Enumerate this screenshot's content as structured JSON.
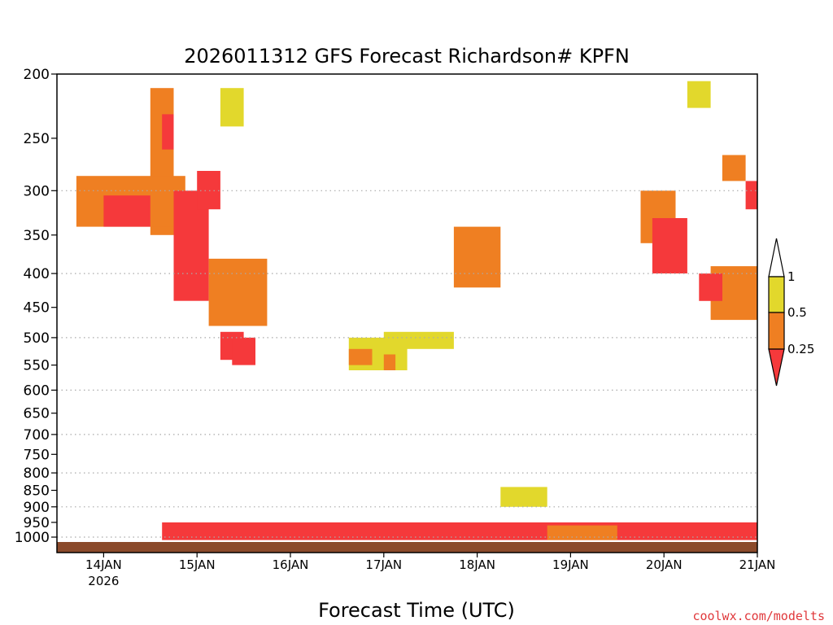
{
  "colors": {
    "lt_025": "#f5393b",
    "r_025_05": "#ef7f22",
    "r_05_1": "#e2d82c",
    "ground": "#8b4a2b",
    "grid": "#aaaaaa",
    "credit": "#e0383b"
  },
  "credit": "coolwx.com/modelts",
  "chart_data": {
    "type": "heatmap",
    "title": "2026011312 GFS Forecast Richardson# KPFN",
    "xlabel": "Forecast Time (UTC)",
    "ylabel": "",
    "y_scale": "log-pressure",
    "ylim": [
      1030,
      200
    ],
    "xlim": [
      "2026-01-13T12",
      "2026-01-21T00"
    ],
    "grid": "horizontal dotted",
    "legend_position": "right",
    "y_ticks": [
      200,
      250,
      300,
      350,
      400,
      450,
      500,
      550,
      600,
      650,
      700,
      750,
      800,
      850,
      900,
      950,
      1000
    ],
    "y_grid": [
      300,
      400,
      500,
      600,
      700,
      800,
      900,
      1000
    ],
    "x_ticks": [
      {
        "t": "2026-01-14T00",
        "label": "14JAN",
        "sub": "2026"
      },
      {
        "t": "2026-01-15T00",
        "label": "15JAN",
        "sub": ""
      },
      {
        "t": "2026-01-16T00",
        "label": "16JAN",
        "sub": ""
      },
      {
        "t": "2026-01-17T00",
        "label": "17JAN",
        "sub": ""
      },
      {
        "t": "2026-01-18T00",
        "label": "18JAN",
        "sub": ""
      },
      {
        "t": "2026-01-19T00",
        "label": "19JAN",
        "sub": ""
      },
      {
        "t": "2026-01-20T00",
        "label": "20JAN",
        "sub": ""
      },
      {
        "t": "2026-01-21T00",
        "label": "21JAN",
        "sub": ""
      }
    ],
    "colorbar": {
      "labels": [
        "1",
        "0.5",
        "0.25"
      ],
      "bins": [
        {
          "range": "> 1",
          "color": "#ffffff"
        },
        {
          "range": "0.5 - 1",
          "color": "#e2d82c"
        },
        {
          "range": "0.25 - 0.5",
          "color": "#ef7f22"
        },
        {
          "range": "< 0.25",
          "color": "#f5393b"
        }
      ]
    },
    "regions": [
      {
        "t0": "2026-01-14T12",
        "t1": "2026-01-14T18",
        "p_top": 210,
        "p_bot": 350,
        "cat": "0.25-0.5"
      },
      {
        "t0": "2026-01-14T15",
        "t1": "2026-01-14T18",
        "p_top": 230,
        "p_bot": 260,
        "cat": "<0.25"
      },
      {
        "t0": "2026-01-13T17",
        "t1": "2026-01-14T21",
        "p_top": 285,
        "p_bot": 340,
        "cat": "0.25-0.5"
      },
      {
        "t0": "2026-01-14T00",
        "t1": "2026-01-14T12",
        "p_top": 305,
        "p_bot": 340,
        "cat": "<0.25"
      },
      {
        "t0": "2026-01-14T18",
        "t1": "2026-01-15T03",
        "p_top": 300,
        "p_bot": 440,
        "cat": "<0.25"
      },
      {
        "t0": "2026-01-15T00",
        "t1": "2026-01-15T06",
        "p_top": 280,
        "p_bot": 320,
        "cat": "<0.25"
      },
      {
        "t0": "2026-01-15T06",
        "t1": "2026-01-15T12",
        "p_top": 210,
        "p_bot": 240,
        "cat": "0.5-1"
      },
      {
        "t0": "2026-01-15T03",
        "t1": "2026-01-15T18",
        "p_top": 380,
        "p_bot": 480,
        "cat": "0.25-0.5"
      },
      {
        "t0": "2026-01-15T06",
        "t1": "2026-01-15T12",
        "p_top": 490,
        "p_bot": 540,
        "cat": "<0.25"
      },
      {
        "t0": "2026-01-15T09",
        "t1": "2026-01-15T15",
        "p_top": 500,
        "p_bot": 550,
        "cat": "<0.25"
      },
      {
        "t0": "2026-01-16T15",
        "t1": "2026-01-17T06",
        "p_top": 500,
        "p_bot": 560,
        "cat": "0.5-1"
      },
      {
        "t0": "2026-01-16T15",
        "t1": "2026-01-16T21",
        "p_top": 520,
        "p_bot": 550,
        "cat": "0.25-0.5"
      },
      {
        "t0": "2026-01-17T00",
        "t1": "2026-01-17T03",
        "p_top": 530,
        "p_bot": 560,
        "cat": "0.25-0.5"
      },
      {
        "t0": "2026-01-17T00",
        "t1": "2026-01-17T18",
        "p_top": 490,
        "p_bot": 520,
        "cat": "0.5-1"
      },
      {
        "t0": "2026-01-17T18",
        "t1": "2026-01-18T06",
        "p_top": 340,
        "p_bot": 420,
        "cat": "0.25-0.5"
      },
      {
        "t0": "2026-01-18T06",
        "t1": "2026-01-18T18",
        "p_top": 840,
        "p_bot": 900,
        "cat": "0.5-1"
      },
      {
        "t0": "2026-01-19T18",
        "t1": "2026-01-20T03",
        "p_top": 300,
        "p_bot": 360,
        "cat": "0.25-0.5"
      },
      {
        "t0": "2026-01-19T21",
        "t1": "2026-01-20T06",
        "p_top": 330,
        "p_bot": 400,
        "cat": "<0.25"
      },
      {
        "t0": "2026-01-20T12",
        "t1": "2026-01-21T00",
        "p_top": 390,
        "p_bot": 470,
        "cat": "0.25-0.5"
      },
      {
        "t0": "2026-01-20T09",
        "t1": "2026-01-20T15",
        "p_top": 400,
        "p_bot": 440,
        "cat": "<0.25"
      },
      {
        "t0": "2026-01-20T21",
        "t1": "2026-01-21T00",
        "p_top": 290,
        "p_bot": 320,
        "cat": "<0.25"
      },
      {
        "t0": "2026-01-20T06",
        "t1": "2026-01-20T12",
        "p_top": 205,
        "p_bot": 225,
        "cat": "0.5-1"
      },
      {
        "t0": "2026-01-20T15",
        "t1": "2026-01-20T21",
        "p_top": 265,
        "p_bot": 290,
        "cat": "0.25-0.5"
      },
      {
        "t0": "2026-01-14T15",
        "t1": "2026-01-21T00",
        "p_top": 950,
        "p_bot": 1010,
        "cat": "<0.25"
      },
      {
        "t0": "2026-01-18T18",
        "t1": "2026-01-19T12",
        "p_top": 960,
        "p_bot": 1010,
        "cat": "0.25-0.5"
      }
    ]
  }
}
